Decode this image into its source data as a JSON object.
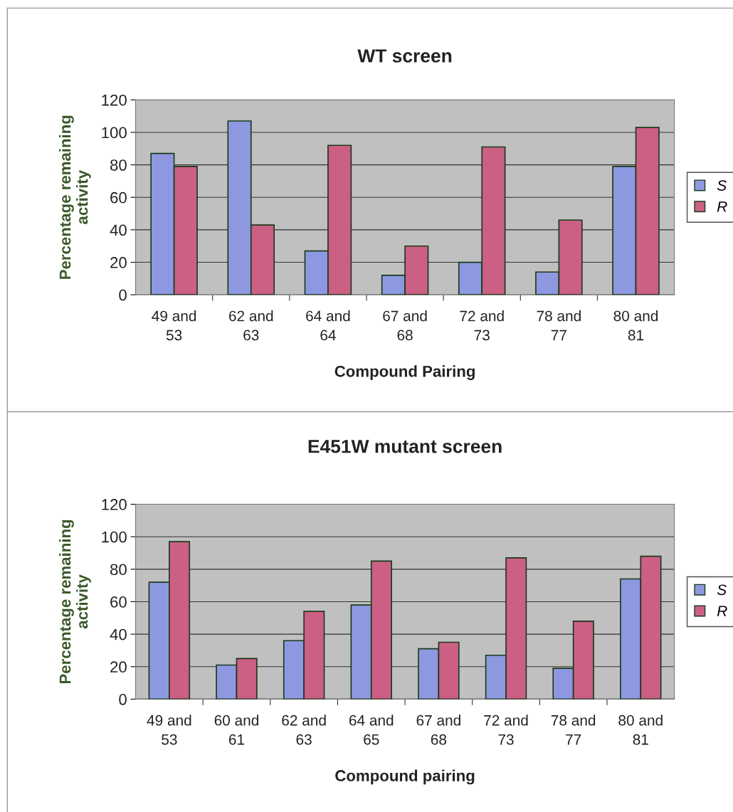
{
  "chart_data": [
    {
      "type": "bar",
      "title": "WT screen",
      "xlabel": "Compound Pairing",
      "ylabel": "Percentage remaining\nactivity",
      "categories": [
        "49 and\n53",
        "62 and\n63",
        "64 and\n64",
        "67 and\n68",
        "72 and\n73",
        "78 and\n77",
        "80 and\n81"
      ],
      "series": [
        {
          "name": "S",
          "color": "#8e98e0",
          "values": [
            87,
            107,
            27,
            12,
            20,
            14,
            79
          ]
        },
        {
          "name": "R",
          "color": "#cc5f84",
          "values": [
            79,
            43,
            92,
            30,
            91,
            46,
            103
          ]
        }
      ],
      "ylim": [
        0,
        120
      ],
      "yticks": [
        0,
        20,
        40,
        60,
        80,
        100,
        120
      ],
      "grid": "y",
      "legend": "right"
    },
    {
      "type": "bar",
      "title": "E451W mutant screen",
      "xlabel": "Compound pairing",
      "ylabel": "Percentage remaining\nactivity",
      "categories": [
        "49 and\n53",
        "60 and\n61",
        "62 and\n63",
        "64 and\n65",
        "67 and\n68",
        "72 and\n73",
        "78 and\n77",
        "80 and\n81"
      ],
      "series": [
        {
          "name": "S",
          "color": "#8e98e0",
          "values": [
            72,
            21,
            36,
            58,
            31,
            27,
            19,
            74
          ]
        },
        {
          "name": "R",
          "color": "#cc5f84",
          "values": [
            97,
            25,
            54,
            85,
            35,
            87,
            48,
            88
          ]
        }
      ],
      "ylim": [
        0,
        120
      ],
      "yticks": [
        0,
        20,
        40,
        60,
        80,
        100,
        120
      ],
      "grid": "y",
      "legend": "right"
    }
  ]
}
